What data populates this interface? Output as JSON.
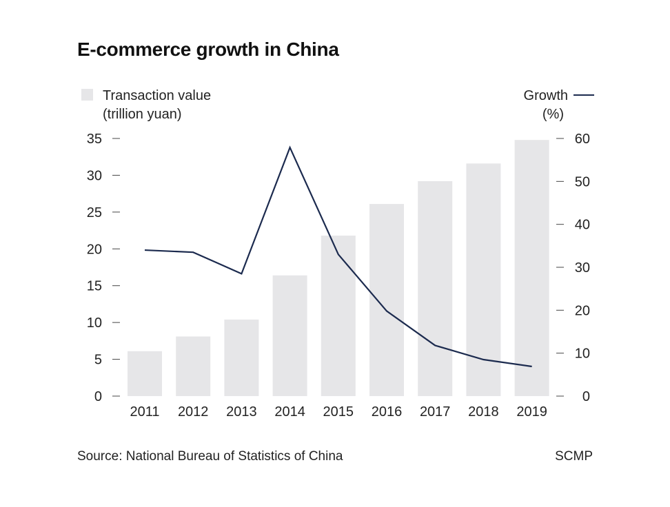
{
  "title": "E-commerce growth in China",
  "legend": {
    "bars_line1": "Transaction value",
    "bars_line2": "(trillion yuan)",
    "line_line1": "Growth",
    "line_line2": "(%)"
  },
  "footer": {
    "source": "Source: National Bureau of Statistics of China",
    "credit": "SCMP"
  },
  "colors": {
    "bar": "#e6e6e8",
    "line": "#1b2a4e",
    "tick": "#444444",
    "text": "#222222"
  },
  "chart_data": {
    "type": "bar",
    "title": "E-commerce growth in China",
    "categories": [
      "2011",
      "2012",
      "2013",
      "2014",
      "2015",
      "2016",
      "2017",
      "2018",
      "2019"
    ],
    "series": [
      {
        "name": "Transaction value (trillion yuan)",
        "type": "bar",
        "axis": "left",
        "values": [
          6.1,
          8.1,
          10.4,
          16.4,
          21.8,
          26.1,
          29.2,
          31.6,
          34.8
        ]
      },
      {
        "name": "Growth (%)",
        "type": "line",
        "axis": "right",
        "values": [
          34.0,
          33.5,
          28.5,
          57.9,
          33.0,
          19.8,
          11.8,
          8.5,
          6.9
        ]
      }
    ],
    "y_left": {
      "ticks": [
        0,
        5,
        10,
        15,
        20,
        25,
        30,
        35
      ],
      "lim": [
        0,
        35
      ]
    },
    "y_right": {
      "ticks": [
        0,
        10,
        20,
        30,
        40,
        50,
        60
      ],
      "lim": [
        0,
        60
      ]
    },
    "grid": false,
    "legend_placement": "top"
  }
}
